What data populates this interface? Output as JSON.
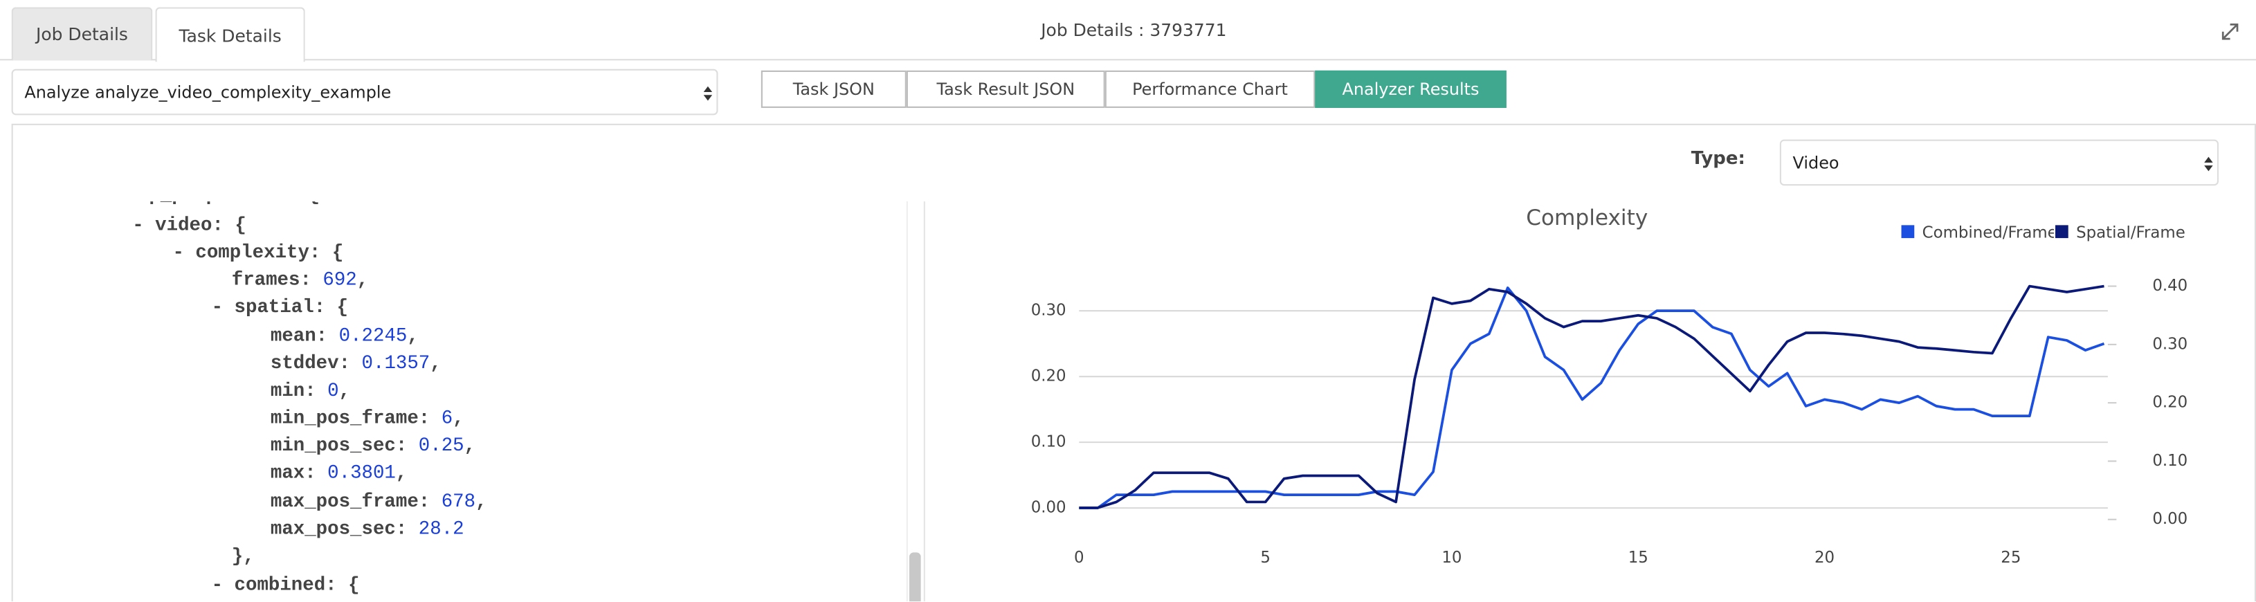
{
  "tabs": [
    "Job Details",
    "Task Details"
  ],
  "header_title": "Job Details : 3793771",
  "task_select": "Analyze analyze_video_complexity_example",
  "buttons": [
    "Task JSON",
    "Task Result JSON",
    "Performance Chart",
    "Analyzer Results"
  ],
  "type_label": "Type:",
  "type_select": "Video",
  "json_lines": [
    {
      "key": "- deep_properties: {"
    },
    {
      "key": "- video: {"
    },
    {
      "key": "- complexity: {"
    },
    {
      "key": "frames:",
      "value": "692",
      "suffix": ","
    },
    {
      "key": "- spatial: {"
    },
    {
      "key": "mean:",
      "value": "0.2245",
      "suffix": ","
    },
    {
      "key": "stddev:",
      "value": "0.1357",
      "suffix": ","
    },
    {
      "key": "min:",
      "value": "0",
      "suffix": ","
    },
    {
      "key": "min_pos_frame:",
      "value": "6",
      "suffix": ","
    },
    {
      "key": "min_pos_sec:",
      "value": "0.25",
      "suffix": ","
    },
    {
      "key": "max:",
      "value": "0.3801",
      "suffix": ","
    },
    {
      "key": "max_pos_frame:",
      "value": "678",
      "suffix": ","
    },
    {
      "key": "max_pos_sec:",
      "value": "28.2"
    },
    {
      "key": "},"
    },
    {
      "key": "- combined: {"
    }
  ],
  "chart_data": {
    "type": "line",
    "title": "Complexity",
    "x": [
      0,
      0.5,
      1,
      1.5,
      2,
      2.5,
      3,
      3.5,
      4,
      4.5,
      5,
      5.5,
      6,
      6.5,
      7,
      7.5,
      8,
      8.5,
      9,
      9.5,
      10,
      10.5,
      11,
      11.5,
      12,
      12.5,
      13,
      13.5,
      14,
      14.5,
      15,
      15.5,
      16,
      16.5,
      17,
      17.5,
      18,
      18.5,
      19,
      19.5,
      20,
      20.5,
      21,
      21.5,
      22,
      22.5,
      23,
      23.5,
      24,
      24.5,
      25,
      25.5,
      26,
      26.5,
      27,
      27.5
    ],
    "series": [
      {
        "name": "Combined/Frame",
        "color": "#1a4fe0",
        "values": [
          0,
          0,
          0.02,
          0.02,
          0.02,
          0.025,
          0.025,
          0.025,
          0.025,
          0.025,
          0.025,
          0.02,
          0.02,
          0.02,
          0.02,
          0.02,
          0.025,
          0.025,
          0.02,
          0.055,
          0.21,
          0.25,
          0.265,
          0.335,
          0.3,
          0.23,
          0.21,
          0.165,
          0.19,
          0.24,
          0.28,
          0.3,
          0.3,
          0.3,
          0.275,
          0.265,
          0.21,
          0.185,
          0.205,
          0.155,
          0.165,
          0.16,
          0.15,
          0.165,
          0.16,
          0.17,
          0.155,
          0.15,
          0.15,
          0.14,
          0.14,
          0.14,
          0.26,
          0.255,
          0.24,
          0.25
        ]
      },
      {
        "name": "Spatial/Frame",
        "color": "#0b1a78",
        "axis": "y2",
        "values": [
          0.02,
          0.02,
          0.03,
          0.05,
          0.08,
          0.08,
          0.08,
          0.08,
          0.07,
          0.03,
          0.03,
          0.07,
          0.075,
          0.075,
          0.075,
          0.075,
          0.045,
          0.03,
          0.24,
          0.38,
          0.37,
          0.375,
          0.395,
          0.39,
          0.37,
          0.345,
          0.33,
          0.34,
          0.34,
          0.345,
          0.35,
          0.345,
          0.33,
          0.31,
          0.28,
          0.25,
          0.22,
          0.265,
          0.305,
          0.32,
          0.32,
          0.318,
          0.315,
          0.31,
          0.305,
          0.295,
          0.293,
          0.29,
          0.287,
          0.285,
          0.345,
          0.4,
          0.395,
          0.39,
          0.395,
          0.4
        ]
      }
    ],
    "xlim": [
      0,
      27.6
    ],
    "xticks": [
      0,
      5,
      10,
      15,
      20,
      25
    ],
    "ylim": [
      -0.037,
      0.357
    ],
    "yticks": [
      {
        "value": 0,
        "label": "0.00"
      },
      {
        "value": 0.1,
        "label": "0.10"
      },
      {
        "value": 0.2,
        "label": "0.20"
      },
      {
        "value": 0.3,
        "label": "0.30"
      }
    ],
    "y2lim": [
      -0.022,
      0.422
    ],
    "y2ticks": [
      {
        "value": 0,
        "label": "0.00"
      },
      {
        "value": 0.1,
        "label": "0.10"
      },
      {
        "value": 0.2,
        "label": "0.20"
      },
      {
        "value": 0.3,
        "label": "0.30"
      },
      {
        "value": 0.4,
        "label": "0.40"
      }
    ],
    "grid": true,
    "legend": "top-right"
  }
}
